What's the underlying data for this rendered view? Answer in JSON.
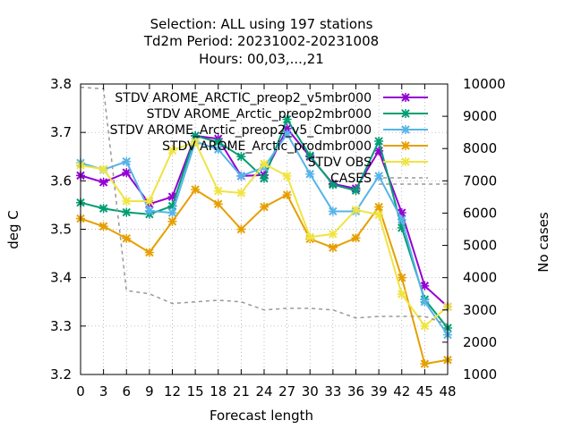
{
  "chart_data": {
    "type": "line",
    "title_lines": [
      "Selection: ALL using   197 stations",
      "Td2m   Period: 20231002-20231008",
      "Hours:  00,03,...,21"
    ],
    "xlabel": "Forecast length",
    "ylabel": "deg C",
    "y2label": "No cases",
    "x": [
      0,
      3,
      6,
      9,
      12,
      15,
      18,
      21,
      24,
      27,
      30,
      33,
      36,
      39,
      42,
      45,
      48
    ],
    "xlim": [
      0,
      48
    ],
    "ylim": [
      3.2,
      3.8
    ],
    "y2lim": [
      1000,
      10000
    ],
    "yticks": [
      "3.2",
      "3.3",
      "3.4",
      "3.5",
      "3.6",
      "3.7",
      "3.8"
    ],
    "y2ticks": [
      "1000",
      "2000",
      "3000",
      "4000",
      "5000",
      "6000",
      "7000",
      "8000",
      "9000",
      "10000"
    ],
    "grid": true,
    "legend_position": "top-right",
    "series": [
      {
        "name": "STDV AROME_ARCTIC_preop2_v5mbr000",
        "color": "#9400d3",
        "marker": "x",
        "values": [
          3.611,
          3.597,
          3.617,
          3.552,
          3.567,
          3.693,
          3.687,
          3.61,
          3.612,
          3.708,
          3.65,
          3.594,
          3.584,
          3.662,
          3.534,
          3.383,
          3.34
        ]
      },
      {
        "name": "STDV AROME_Arctic_preop2mbr000",
        "color": "#009e73",
        "marker": "x",
        "values": [
          3.555,
          3.543,
          3.535,
          3.531,
          3.548,
          3.693,
          3.68,
          3.65,
          3.605,
          3.727,
          3.652,
          3.592,
          3.58,
          3.682,
          3.503,
          3.355,
          3.296
        ]
      },
      {
        "name": "STDV AROME_Arctic_preop2_v5_Cmbr000",
        "color": "#56b4e9",
        "marker": "x",
        "values": [
          3.637,
          3.623,
          3.64,
          3.538,
          3.534,
          3.681,
          3.665,
          3.61,
          3.628,
          3.697,
          3.614,
          3.537,
          3.537,
          3.61,
          3.52,
          3.35,
          3.282
        ]
      },
      {
        "name": "STDV AROME_Arctic_prodmbr000",
        "color": "#e69f00",
        "marker": "x",
        "values": [
          3.522,
          3.506,
          3.481,
          3.452,
          3.516,
          3.582,
          3.552,
          3.5,
          3.546,
          3.571,
          3.48,
          3.462,
          3.482,
          3.546,
          3.4,
          3.222,
          3.23
        ]
      },
      {
        "name": "STDV OBS",
        "color": "#f0e442",
        "marker": "x",
        "values": [
          3.632,
          3.624,
          3.558,
          3.558,
          3.663,
          3.68,
          3.579,
          3.575,
          3.635,
          3.61,
          3.484,
          3.49,
          3.54,
          3.53,
          3.366,
          3.3,
          3.34
        ]
      },
      {
        "name": "CASES",
        "color": "#999999",
        "style": "dashed",
        "axis": "y2",
        "values": [
          9900,
          9850,
          3600,
          3500,
          3200,
          3250,
          3300,
          3250,
          3000,
          3050,
          3050,
          3000,
          2750,
          2800,
          2800,
          2800,
          2550
        ]
      }
    ],
    "cases_extra": {
      "x": [
        39,
        42,
        45,
        48
      ],
      "values": [
        6900,
        6900,
        6900,
        6900
      ]
    }
  }
}
